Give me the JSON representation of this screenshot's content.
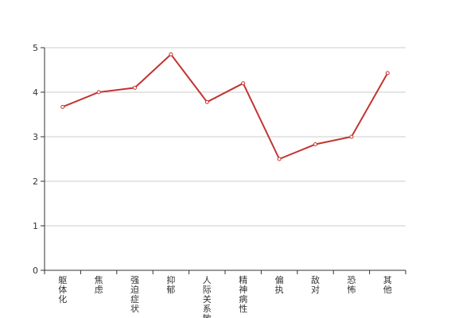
{
  "chart_data": {
    "type": "line",
    "categories": [
      "躯体化",
      "焦虑",
      "强迫症状",
      "抑郁",
      "人际关系敏感",
      "精神病性",
      "偏执",
      "敌对",
      "恐怖",
      "其他"
    ],
    "series": [
      {
        "color": "#c23531",
        "values": [
          3.67,
          4.0,
          4.1,
          4.85,
          3.78,
          4.2,
          2.5,
          2.83,
          3.0,
          4.43
        ]
      }
    ],
    "ylim": [
      0,
      5
    ],
    "yticks": [
      0,
      1,
      2,
      3,
      4,
      5
    ],
    "grid": true
  }
}
